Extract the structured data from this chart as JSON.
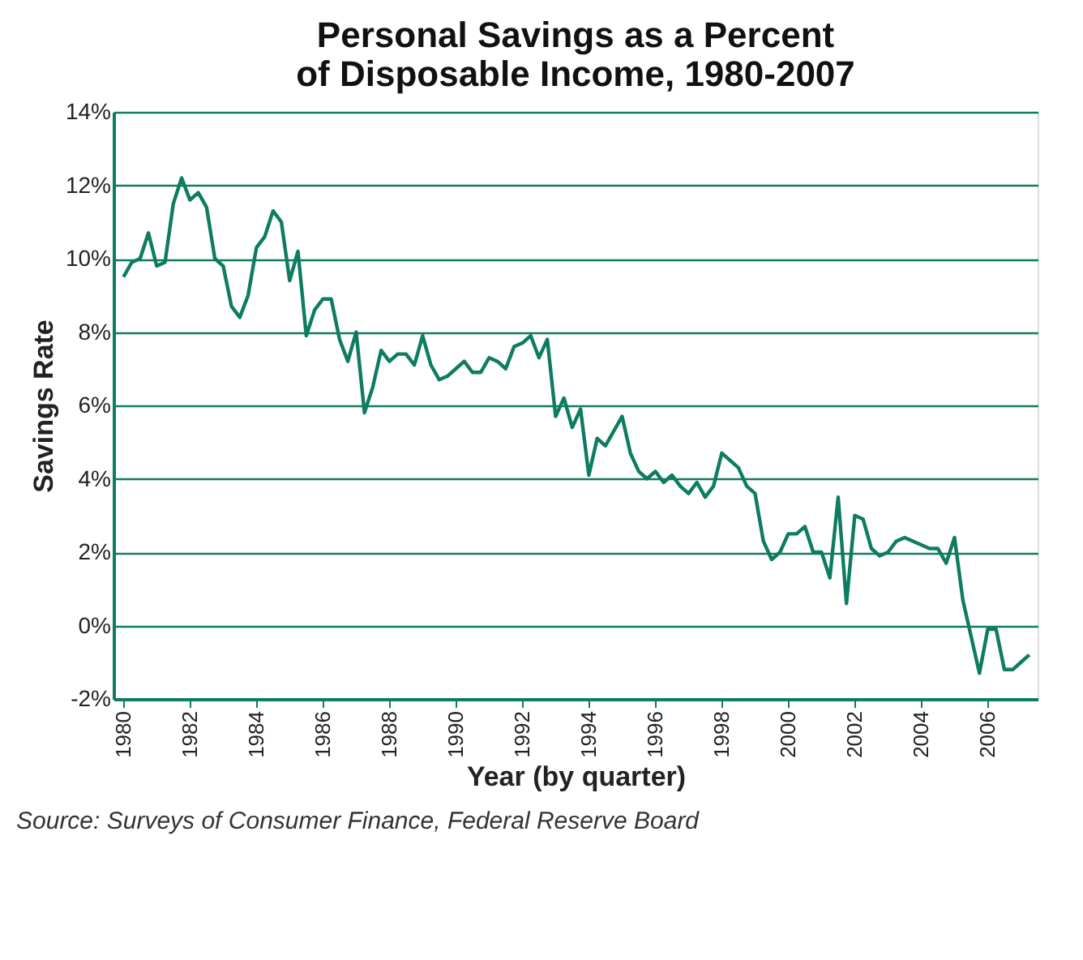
{
  "chart_data": {
    "type": "line",
    "title": "Personal Savings as a Percent\nof Disposable Income, 1980-2007",
    "xlabel": "Year (by quarter)",
    "ylabel": "Savings Rate",
    "annotations": [
      "Source: Surveys of Consumer Finance, Federal Reserve Board"
    ],
    "x": [
      1980,
      1980.25,
      1980.5,
      1980.75,
      1981,
      1981.25,
      1981.5,
      1981.75,
      1982,
      1982.25,
      1982.5,
      1982.75,
      1983,
      1983.25,
      1983.5,
      1983.75,
      1984,
      1984.25,
      1984.5,
      1984.75,
      1985,
      1985.25,
      1985.5,
      1985.75,
      1986,
      1986.25,
      1986.5,
      1986.75,
      1987,
      1987.25,
      1987.5,
      1987.75,
      1988,
      1988.25,
      1988.5,
      1988.75,
      1989,
      1989.25,
      1989.5,
      1989.75,
      1990,
      1990.25,
      1990.5,
      1990.75,
      1991,
      1991.25,
      1991.5,
      1991.75,
      1992,
      1992.25,
      1992.5,
      1992.75,
      1993,
      1993.25,
      1993.5,
      1993.75,
      1994,
      1994.25,
      1994.5,
      1994.75,
      1995,
      1995.25,
      1995.5,
      1995.75,
      1996,
      1996.25,
      1996.5,
      1996.75,
      1997,
      1997.25,
      1997.5,
      1997.75,
      1998,
      1998.25,
      1998.5,
      1998.75,
      1999,
      1999.25,
      1999.5,
      1999.75,
      2000,
      2000.25,
      2000.5,
      2000.75,
      2001,
      2001.25,
      2001.5,
      2001.75,
      2002,
      2002.25,
      2002.5,
      2002.75,
      2003,
      2003.25,
      2003.5,
      2003.75,
      2004,
      2004.25,
      2004.5,
      2004.75,
      2005,
      2005.25,
      2005.5,
      2005.75,
      2006,
      2006.25,
      2006.5,
      2006.75,
      2007,
      2007.25
    ],
    "series": [
      {
        "color": "#0e7c61",
        "values": [
          9.5,
          9.9,
          10.0,
          10.7,
          9.8,
          9.9,
          11.5,
          12.2,
          11.6,
          11.8,
          11.4,
          10.0,
          9.8,
          8.7,
          8.4,
          9.0,
          10.3,
          10.6,
          11.3,
          11.0,
          9.4,
          10.2,
          7.9,
          8.6,
          8.9,
          8.9,
          7.8,
          7.2,
          8.0,
          5.8,
          6.5,
          7.5,
          7.2,
          7.4,
          7.4,
          7.1,
          7.9,
          7.1,
          6.7,
          6.8,
          7.0,
          7.2,
          6.9,
          6.9,
          7.3,
          7.2,
          7.0,
          7.6,
          7.7,
          7.9,
          7.3,
          7.8,
          5.7,
          6.2,
          5.4,
          5.9,
          4.1,
          5.1,
          4.9,
          5.3,
          5.7,
          4.7,
          4.2,
          4.0,
          4.2,
          3.9,
          4.1,
          3.8,
          3.6,
          3.9,
          3.5,
          3.8,
          4.7,
          4.5,
          4.3,
          3.8,
          3.6,
          2.3,
          1.8,
          2.0,
          2.5,
          2.5,
          2.7,
          2.0,
          2.0,
          1.3,
          3.5,
          0.6,
          3.0,
          2.9,
          2.1,
          1.9,
          2.0,
          2.3,
          2.4,
          2.3,
          2.2,
          2.1,
          2.1,
          1.7,
          2.4,
          0.7,
          -0.3,
          -1.3,
          -0.1,
          -0.1,
          -1.2,
          -1.2,
          -1.0,
          -0.8
        ]
      }
    ],
    "xlim": [
      1979.7,
      2007.5
    ],
    "xticks": [
      1980,
      1982,
      1984,
      1986,
      1988,
      1990,
      1992,
      1994,
      1996,
      1998,
      2000,
      2002,
      2004,
      2006
    ],
    "ylim": [
      -2,
      14
    ],
    "yticks": [
      {
        "value": -2,
        "label": "-2%"
      },
      {
        "value": 0,
        "label": "0%"
      },
      {
        "value": 2,
        "label": "2%"
      },
      {
        "value": 4,
        "label": "4%"
      },
      {
        "value": 6,
        "label": "6%"
      },
      {
        "value": 8,
        "label": "8%"
      },
      {
        "value": 10,
        "label": "10%"
      },
      {
        "value": 12,
        "label": "12%"
      },
      {
        "value": 14,
        "label": "14%"
      }
    ],
    "grid": "y",
    "marker": "none",
    "line_style": "solid"
  }
}
